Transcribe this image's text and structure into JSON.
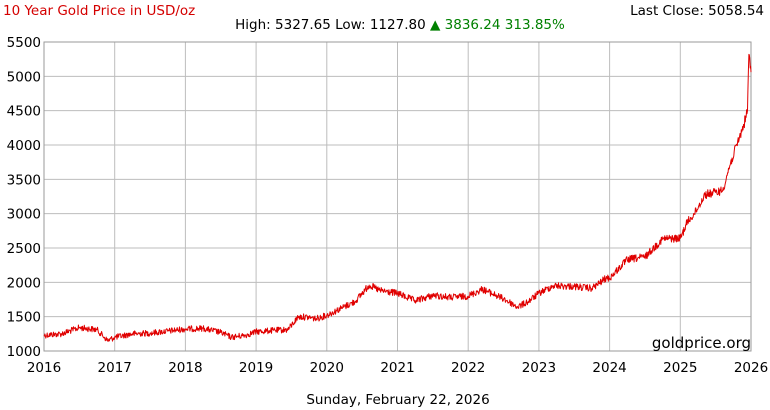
{
  "chart_data": {
    "type": "line",
    "title": "10 Year Gold Price in USD/oz",
    "stats": {
      "high_label": "High:",
      "high": "5327.65",
      "low_label": "Low:",
      "low": "1127.80",
      "change_arrow": "▲",
      "change": "3836.24",
      "change_pct": "313.85%"
    },
    "last_close_label": "Last Close:",
    "last_close": "5058.54",
    "watermark": "goldprice.org",
    "date_label": "Sunday, February 22, 2026",
    "xlim": [
      2016,
      2026
    ],
    "ylim": [
      1000,
      5500
    ],
    "x_ticks": [
      "2016",
      "2017",
      "2018",
      "2019",
      "2020",
      "2021",
      "2022",
      "2023",
      "2024",
      "2025",
      "2026"
    ],
    "y_ticks": [
      "1000",
      "1500",
      "2000",
      "2500",
      "3000",
      "3500",
      "4000",
      "4500",
      "5000",
      "5500"
    ],
    "grid": true,
    "series": [
      {
        "x": [
          2016.0,
          2016.25,
          2016.5,
          2016.75,
          2016.9,
          2017.0,
          2017.25,
          2017.5,
          2017.75,
          2018.0,
          2018.25,
          2018.5,
          2018.65,
          2018.85,
          2019.0,
          2019.25,
          2019.45,
          2019.6,
          2019.75,
          2019.85,
          2020.0,
          2020.2,
          2020.4,
          2020.6,
          2020.75,
          2021.0,
          2021.25,
          2021.5,
          2021.75,
          2022.0,
          2022.2,
          2022.5,
          2022.7,
          2022.85,
          2023.0,
          2023.2,
          2023.5,
          2023.75,
          2023.95,
          2024.0,
          2024.25,
          2024.5,
          2024.75,
          2024.85,
          2025.0,
          2025.1,
          2025.2,
          2025.35,
          2025.5,
          2025.6,
          2025.7,
          2025.8,
          2025.9,
          2025.95,
          2025.97,
          2026.0
        ],
        "values": [
          1230,
          1250,
          1340,
          1310,
          1150,
          1200,
          1250,
          1260,
          1290,
          1320,
          1330,
          1270,
          1200,
          1230,
          1280,
          1300,
          1310,
          1500,
          1490,
          1470,
          1520,
          1620,
          1720,
          1960,
          1880,
          1840,
          1730,
          1810,
          1780,
          1800,
          1900,
          1760,
          1640,
          1720,
          1840,
          1950,
          1940,
          1910,
          2060,
          2060,
          2330,
          2370,
          2630,
          2640,
          2640,
          2880,
          3000,
          3280,
          3310,
          3340,
          3700,
          4000,
          4300,
          4500,
          5320,
          5060
        ]
      }
    ]
  }
}
